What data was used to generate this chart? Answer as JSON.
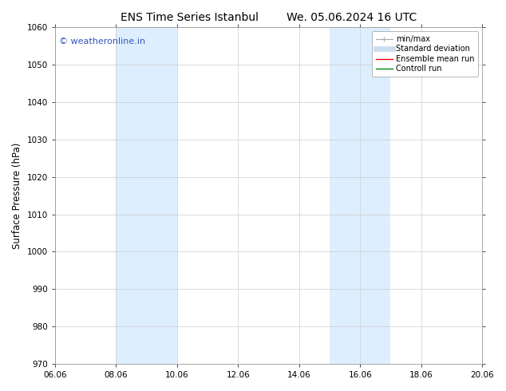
{
  "title_left": "ENS Time Series Istanbul",
  "title_right": "We. 05.06.2024 16 UTC",
  "ylabel": "Surface Pressure (hPa)",
  "ylim": [
    970,
    1060
  ],
  "yticks": [
    970,
    980,
    990,
    1000,
    1010,
    1020,
    1030,
    1040,
    1050,
    1060
  ],
  "xlim_start": 6.06,
  "xlim_end": 20.06,
  "xtick_labels": [
    "06.06",
    "08.06",
    "10.06",
    "12.06",
    "14.06",
    "16.06",
    "18.06",
    "20.06"
  ],
  "xtick_positions": [
    6.06,
    8.06,
    10.06,
    12.06,
    14.06,
    16.06,
    18.06,
    20.06
  ],
  "shaded_bands": [
    {
      "x_start": 8.06,
      "x_end": 10.06
    },
    {
      "x_start": 15.06,
      "x_end": 17.06
    }
  ],
  "shaded_color": "#ddeeff",
  "watermark": "© weatheronline.in",
  "watermark_color": "#3355bb",
  "legend_labels": [
    "min/max",
    "Standard deviation",
    "Ensemble mean run",
    "Controll run"
  ],
  "legend_colors": [
    "#aaaaaa",
    "#ccddef",
    "#ff0000",
    "#008800"
  ],
  "bg_color": "#ffffff",
  "grid_color": "#cccccc",
  "title_fontsize": 10,
  "tick_fontsize": 7.5,
  "ylabel_fontsize": 8.5
}
